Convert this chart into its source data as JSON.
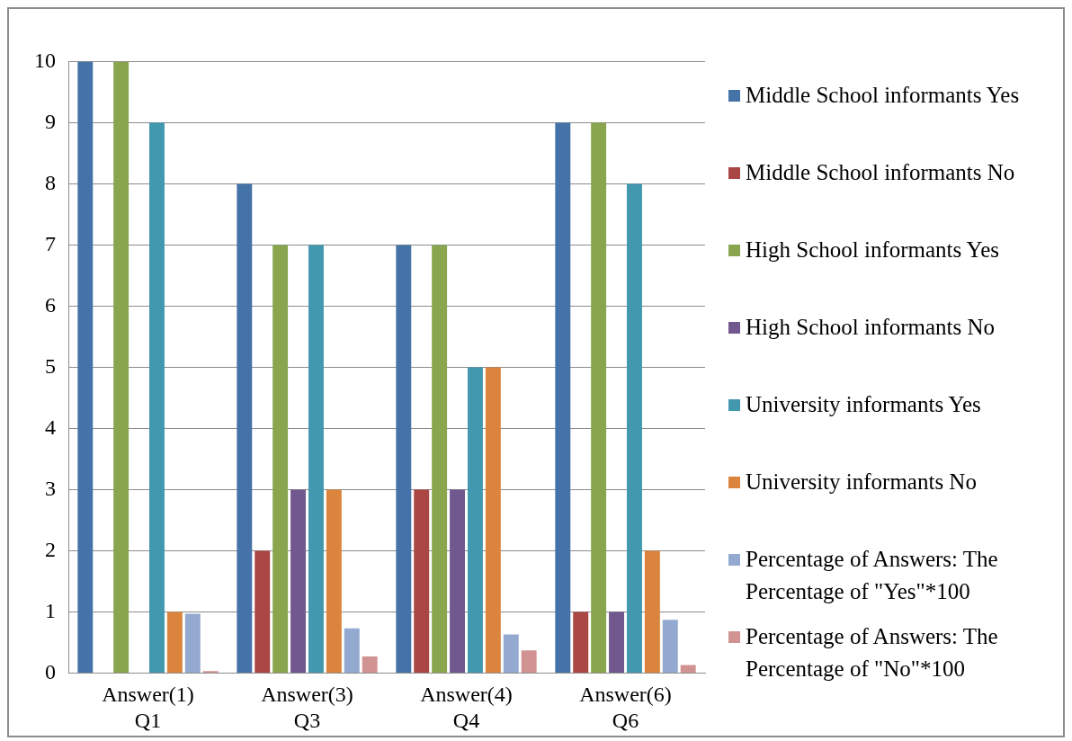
{
  "chart_data": {
    "type": "bar",
    "categories": [
      "Answer(1) Q1",
      "Answer(3) Q3",
      "Answer(4) Q4",
      "Answer(6) Q6"
    ],
    "series": [
      {
        "name": "Middle School informants Yes",
        "color": "#4572a7",
        "values": [
          10,
          8,
          7,
          9
        ]
      },
      {
        "name": "Middle School informants No",
        "color": "#aa4643",
        "values": [
          0,
          2,
          3,
          1
        ]
      },
      {
        "name": "High School informants Yes",
        "color": "#89a54e",
        "values": [
          10,
          7,
          7,
          9
        ]
      },
      {
        "name": "High School informants No",
        "color": "#71588f",
        "values": [
          0,
          3,
          3,
          1
        ]
      },
      {
        "name": "University informants Yes",
        "color": "#4198af",
        "values": [
          9,
          7,
          5,
          8
        ]
      },
      {
        "name": "University informants No",
        "color": "#db843d",
        "values": [
          1,
          3,
          5,
          2
        ]
      },
      {
        "name": "Percentage of Answers: The Percentage of \"Yes\"*100",
        "color": "#93a9cf",
        "values": [
          0.97,
          0.73,
          0.63,
          0.87
        ]
      },
      {
        "name": "Percentage of Answers: The Percentage of \"No\"*100",
        "color": "#d19392",
        "values": [
          0.03,
          0.27,
          0.37,
          0.13
        ]
      }
    ],
    "ylim": [
      0,
      10
    ],
    "yticks": [
      0,
      1,
      2,
      3,
      4,
      5,
      6,
      7,
      8,
      9,
      10
    ],
    "grid": "y",
    "legend": "right"
  }
}
